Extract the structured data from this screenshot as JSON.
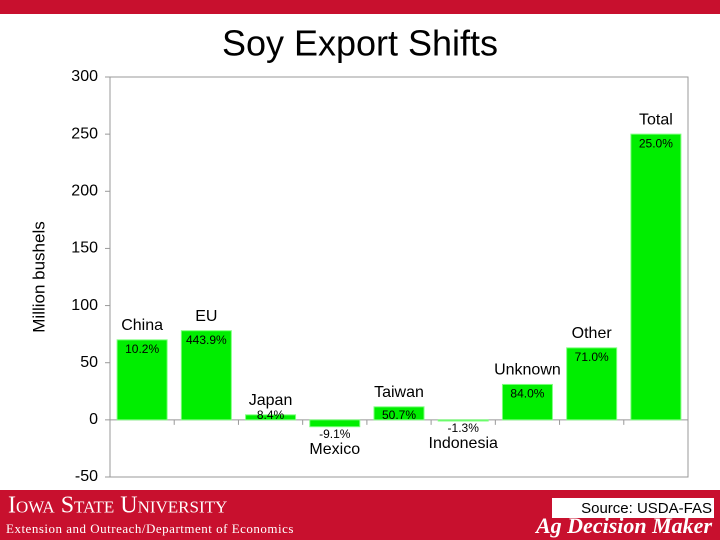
{
  "chart_data": {
    "type": "bar",
    "title": "Soy Export Shifts",
    "y_label": "Million bushels",
    "categories": [
      "China",
      "EU",
      "Japan",
      "Mexico",
      "Taiwan",
      "Indonesia",
      "Unknown",
      "Other",
      "Total"
    ],
    "values": [
      70,
      78,
      4.4,
      -6,
      11.4,
      -1,
      31,
      63,
      250
    ],
    "change_labels": [
      "10.2%",
      "443.9%",
      "8.4%",
      "-9.1%",
      "50.7%",
      "-1.3%",
      "84.0%",
      "71.0%",
      "25.0%"
    ],
    "color": "#00ee00",
    "ylim": [
      -50,
      300
    ],
    "yticks": [
      -50,
      0,
      50,
      100,
      150,
      200,
      250,
      300
    ],
    "grid": false,
    "source": "Source: USDA-FAS"
  },
  "footer": {
    "university": "Iowa State University",
    "unit": "Extension and Outreach/Department of Economics",
    "brand": "Ag Decision Maker"
  }
}
